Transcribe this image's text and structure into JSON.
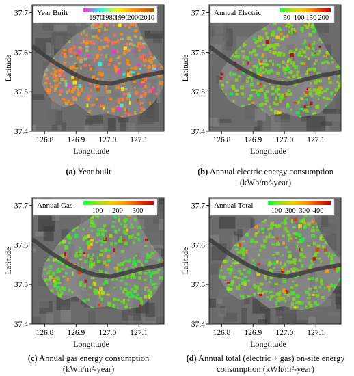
{
  "charts": [
    {
      "id": "a",
      "caption_letter": "(a)",
      "caption_lines": [
        "Year built"
      ],
      "chart_data": {
        "type": "heatmap",
        "xlabel": "Longtitude",
        "ylabel": "Latitude",
        "xticks": [
          126.8,
          126.9,
          127.0,
          127.1
        ],
        "yticks": [
          37.4,
          37.5,
          37.6,
          37.7
        ],
        "xlim": [
          126.76,
          127.18
        ],
        "ylim": [
          37.4,
          37.72
        ],
        "colorbar": {
          "title": "Year Built",
          "ticks": [
            1970,
            1980,
            1990,
            2000,
            2010
          ],
          "range": [
            1960,
            2015
          ],
          "colors": [
            "#ff2ad7",
            "#22ffe6",
            "#fff100",
            "#ff8a00",
            "#b25a00"
          ]
        },
        "dominant_color": "#ff8a18"
      }
    },
    {
      "id": "b",
      "caption_letter": "(b)",
      "caption_lines": [
        "Annual electric energy consumption",
        "(kWh/m²-year)"
      ],
      "chart_data": {
        "type": "heatmap",
        "xlabel": "Longtitude",
        "ylabel": "Latitude",
        "xticks": [
          126.8,
          126.9,
          127.0,
          127.1
        ],
        "yticks": [
          37.4,
          37.5,
          37.6,
          37.7
        ],
        "xlim": [
          126.76,
          127.18
        ],
        "ylim": [
          37.4,
          37.72
        ],
        "colorbar": {
          "title": "Annual Electric",
          "ticks": [
            50,
            100,
            150,
            200
          ],
          "range": [
            20,
            230
          ],
          "colors": [
            "#00ff3a",
            "#9be21a",
            "#f0d000",
            "#ff9a00",
            "#e83a00",
            "#c40000"
          ]
        },
        "dominant_color": "#86d21c"
      }
    },
    {
      "id": "c",
      "caption_letter": "(c)",
      "caption_lines": [
        "Annual gas energy consumption",
        "(kWh/m²-year)"
      ],
      "chart_data": {
        "type": "heatmap",
        "xlabel": "Longtitude",
        "ylabel": "Latitude",
        "xticks": [
          126.8,
          126.9,
          127.0,
          127.1
        ],
        "yticks": [
          37.4,
          37.5,
          37.6,
          37.7
        ],
        "xlim": [
          126.76,
          127.18
        ],
        "ylim": [
          37.4,
          37.72
        ],
        "colorbar": {
          "title": "Annual Gas",
          "ticks": [
            100,
            200,
            300
          ],
          "range": [
            30,
            380
          ],
          "colors": [
            "#00ff3a",
            "#9be21a",
            "#f0d000",
            "#ff9a00",
            "#e83a00",
            "#c40000"
          ]
        },
        "dominant_color": "#5cd82a"
      }
    },
    {
      "id": "d",
      "caption_letter": "(d)",
      "caption_lines": [
        "Annual total (electric + gas) on-site energy",
        "consumption (kWh/m²-year)"
      ],
      "chart_data": {
        "type": "heatmap",
        "xlabel": "Longtitude",
        "ylabel": "Latitude",
        "xticks": [
          126.8,
          126.9,
          127.0,
          127.1
        ],
        "yticks": [
          37.4,
          37.5,
          37.6,
          37.7
        ],
        "xlim": [
          126.76,
          127.18
        ],
        "ylim": [
          37.4,
          37.72
        ],
        "colorbar": {
          "title": "Annual Total",
          "ticks": [
            100,
            200,
            300,
            400
          ],
          "range": [
            40,
            490
          ],
          "colors": [
            "#00ff3a",
            "#9be21a",
            "#f0d000",
            "#ff9a00",
            "#e83a00",
            "#c40000"
          ]
        },
        "dominant_color": "#74d424"
      }
    }
  ]
}
